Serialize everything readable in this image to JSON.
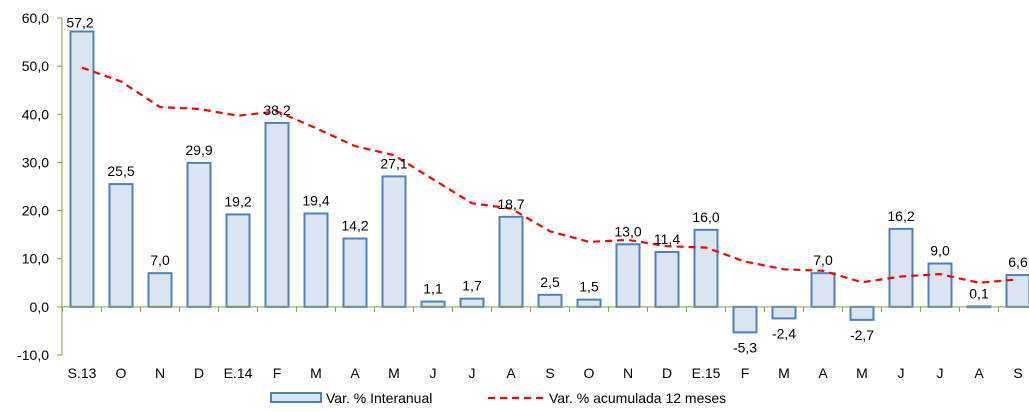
{
  "chart_data": {
    "type": "bar",
    "title": "",
    "xlabel": "",
    "ylabel": "",
    "ylim": [
      -10,
      60
    ],
    "y_ticks": [
      "-10,0",
      "0,0",
      "10,0",
      "20,0",
      "30,0",
      "40,0",
      "50,0",
      "60,0"
    ],
    "y_tick_values": [
      -10,
      0,
      10,
      20,
      30,
      40,
      50,
      60
    ],
    "categories": [
      "S.13",
      "O",
      "N",
      "D",
      "E.14",
      "F",
      "M",
      "A",
      "M",
      "J",
      "J",
      "A",
      "S",
      "O",
      "N",
      "D",
      "E.15",
      "F",
      "M",
      "A",
      "M",
      "J",
      "J",
      "A",
      "S"
    ],
    "series": [
      {
        "name": "Var. % Interanual",
        "type": "bar",
        "color": "#4f81bd",
        "fill": "#dbe5f1",
        "values": [
          57.2,
          25.5,
          7.0,
          29.9,
          19.2,
          38.2,
          19.4,
          14.2,
          27.1,
          1.1,
          1.7,
          18.7,
          2.5,
          1.5,
          13.0,
          11.4,
          16.0,
          -5.3,
          -2.4,
          7.0,
          -2.7,
          16.2,
          9.0,
          0.1,
          6.6
        ],
        "labels": [
          "57,2",
          "25,5",
          "7,0",
          "29,9",
          "19,2",
          "38,2",
          "19,4",
          "14,2",
          "27,1",
          "1,1",
          "1,7",
          "18,7",
          "2,5",
          "1,5",
          "13,0",
          "11,4",
          "16,0",
          "-5,3",
          "-2,4",
          "7,0",
          "-2,7",
          "16,2",
          "9,0",
          "0,1",
          "6,6"
        ]
      },
      {
        "name": "Var. % acumulada 12 meses",
        "type": "line",
        "color": "#ff0000",
        "dashed": true,
        "values": [
          49.7,
          46.8,
          41.5,
          41.1,
          39.7,
          40.6,
          37.1,
          33.4,
          31.5,
          26.5,
          21.5,
          20.4,
          15.7,
          13.5,
          13.9,
          12.6,
          12.3,
          9.4,
          7.8,
          7.5,
          5.1,
          6.3,
          6.8,
          5.0,
          5.7
        ]
      }
    ],
    "legend": {
      "position": "bottom",
      "items": [
        "Var. % Interanual",
        "Var. % acumulada 12 meses"
      ]
    },
    "grid": false
  }
}
